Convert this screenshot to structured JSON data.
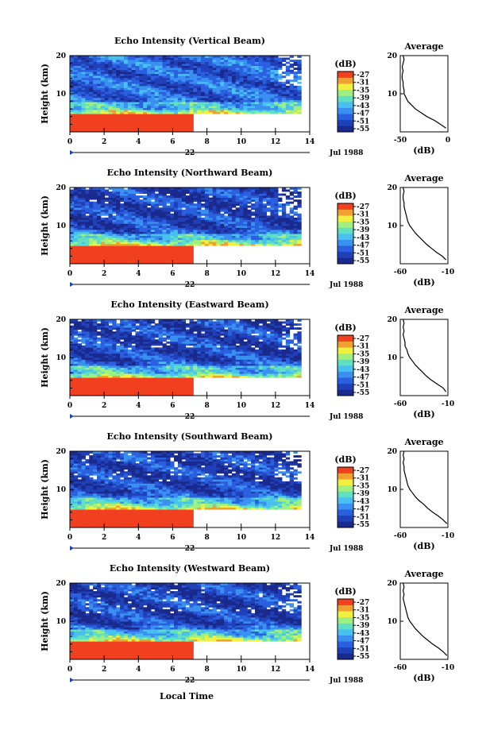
{
  "colorbar": {
    "unit": "(dB)",
    "tick_labels": [
      "-27",
      "-31",
      "-35",
      "-39",
      "-43",
      "-47",
      "-51",
      "-55"
    ],
    "colors": [
      "#1a2a8c",
      "#2040b8",
      "#2a60e0",
      "#3a90f0",
      "#48c0f0",
      "#60e0c0",
      "#a0f080",
      "#f0f040",
      "#f0a030",
      "#f04020"
    ]
  },
  "time_axis": {
    "ticks": [
      "0",
      "2",
      "4",
      "6",
      "8",
      "10",
      "12",
      "14"
    ],
    "range": [
      0,
      14
    ],
    "date_day": "22",
    "date_month_year": "Jul 1988",
    "xlabel": "Local Time"
  },
  "height_axis": {
    "label": "Height (km)",
    "ticks": [
      "10",
      "20"
    ],
    "range": [
      0,
      20
    ]
  },
  "average_title": "Average",
  "average_xlabel": "(dB)",
  "chart_data": [
    {
      "type": "heatmap",
      "title": "Echo Intensity (Vertical Beam)",
      "ylabel": "Height (km)",
      "data_end_time": 13.5,
      "red_cap_end_time": 7.0,
      "red_layer_top_km": 4.8,
      "profile": {
        "type": "line",
        "xticks": [
          "-50",
          "0"
        ],
        "xlim": [
          -50,
          0
        ],
        "height_km": [
          1,
          2,
          3,
          4,
          5,
          6,
          7,
          8,
          9,
          10,
          11,
          12,
          13,
          14,
          15,
          16,
          17,
          18,
          19,
          20
        ],
        "avg_db": [
          -2,
          -8,
          -14,
          -22,
          -28,
          -34,
          -38,
          -42,
          -44,
          -46,
          -46,
          -47,
          -47,
          -48,
          -48,
          -47,
          -48,
          -47,
          -46,
          -47
        ]
      }
    },
    {
      "type": "heatmap",
      "title": "Echo Intensity (Northward Beam)",
      "ylabel": "Height (km)",
      "data_end_time": 13.5,
      "red_cap_end_time": 7.0,
      "red_layer_top_km": 5.0,
      "profile": {
        "type": "line",
        "xticks": [
          "-60",
          "-10"
        ],
        "xlim": [
          -60,
          -10
        ],
        "height_km": [
          1,
          2,
          3,
          4,
          5,
          6,
          7,
          8,
          9,
          10,
          11,
          12,
          13,
          14,
          15,
          16,
          17,
          18,
          19,
          20
        ],
        "avg_db": [
          -12,
          -16,
          -22,
          -27,
          -32,
          -36,
          -40,
          -44,
          -47,
          -50,
          -52,
          -53,
          -54,
          -55,
          -56,
          -56,
          -57,
          -57,
          -56,
          -57
        ]
      }
    },
    {
      "type": "heatmap",
      "title": "Echo Intensity (Eastward Beam)",
      "ylabel": "Height (km)",
      "data_end_time": 13.5,
      "red_cap_end_time": 7.0,
      "red_layer_top_km": 4.8,
      "profile": {
        "type": "line",
        "xticks": [
          "-60",
          "-10"
        ],
        "xlim": [
          -60,
          -10
        ],
        "height_km": [
          1,
          2,
          3,
          4,
          5,
          6,
          7,
          8,
          9,
          10,
          11,
          12,
          13,
          14,
          15,
          16,
          17,
          18,
          19,
          20
        ],
        "avg_db": [
          -12,
          -15,
          -21,
          -27,
          -32,
          -36,
          -40,
          -44,
          -47,
          -50,
          -52,
          -53,
          -55,
          -55,
          -56,
          -57,
          -56,
          -57,
          -56,
          -57
        ]
      }
    },
    {
      "type": "heatmap",
      "title": "Echo Intensity (Southward Beam)",
      "ylabel": "Height (km)",
      "data_end_time": 13.5,
      "red_cap_end_time": 7.0,
      "red_layer_top_km": 5.0,
      "profile": {
        "type": "line",
        "xticks": [
          "-60",
          "-10"
        ],
        "xlim": [
          -60,
          -10
        ],
        "height_km": [
          1,
          2,
          3,
          4,
          5,
          6,
          7,
          8,
          9,
          10,
          11,
          12,
          13,
          14,
          15,
          16,
          17,
          18,
          19,
          20
        ],
        "avg_db": [
          -11,
          -15,
          -20,
          -26,
          -31,
          -35,
          -40,
          -44,
          -47,
          -50,
          -52,
          -53,
          -54,
          -55,
          -56,
          -56,
          -57,
          -56,
          -57,
          -56
        ]
      }
    },
    {
      "type": "heatmap",
      "title": "Echo Intensity (Westward Beam)",
      "ylabel": "Height (km)",
      "data_end_time": 13.5,
      "red_cap_end_time": 7.0,
      "red_layer_top_km": 5.0,
      "profile": {
        "type": "line",
        "xticks": [
          "-60",
          "-10"
        ],
        "xlim": [
          -60,
          -10
        ],
        "height_km": [
          1,
          2,
          3,
          4,
          5,
          6,
          7,
          8,
          9,
          10,
          11,
          12,
          13,
          14,
          15,
          16,
          17,
          18,
          19,
          20
        ],
        "avg_db": [
          -11,
          -15,
          -20,
          -26,
          -31,
          -36,
          -40,
          -44,
          -47,
          -50,
          -52,
          -53,
          -54,
          -55,
          -56,
          -57,
          -56,
          -57,
          -56,
          -57
        ]
      }
    }
  ]
}
